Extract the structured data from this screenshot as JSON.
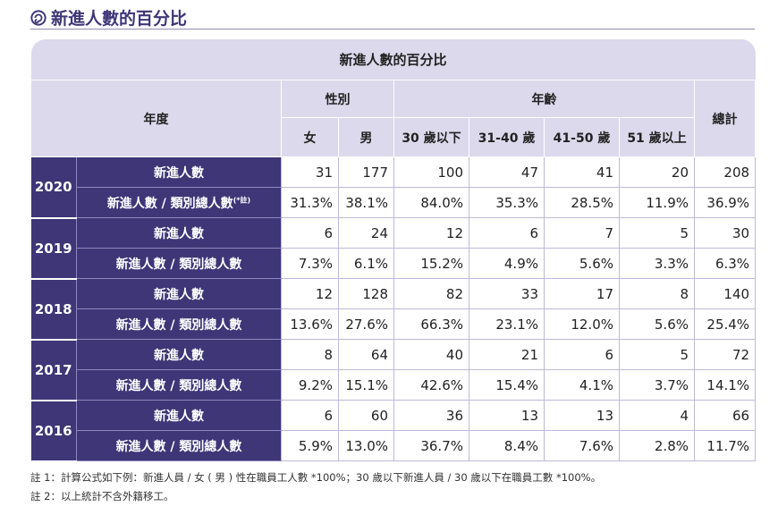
{
  "heading": {
    "title": "新進人數的百分比"
  },
  "table": {
    "caption": "新進人數的百分比",
    "col_year": "年度",
    "group_gender": "性別",
    "group_age": "年齡",
    "col_total": "總計",
    "sub_headers": [
      "女",
      "男",
      "30 歲以下",
      "31-40 歲",
      "41-50 歲",
      "51 歲以上"
    ],
    "metric_count": "新進人數",
    "metric_pct": "新進人數 / 類別總人數",
    "metric_pct_note": "(*註)",
    "years": [
      {
        "year": "2020",
        "count": [
          "31",
          "177",
          "100",
          "47",
          "41",
          "20",
          "208"
        ],
        "pct": [
          "31.3%",
          "38.1%",
          "84.0%",
          "35.3%",
          "28.5%",
          "11.9%",
          "36.9%"
        ]
      },
      {
        "year": "2019",
        "count": [
          "6",
          "24",
          "12",
          "6",
          "7",
          "5",
          "30"
        ],
        "pct": [
          "7.3%",
          "6.1%",
          "15.2%",
          "4.9%",
          "5.6%",
          "3.3%",
          "6.3%"
        ]
      },
      {
        "year": "2018",
        "count": [
          "12",
          "128",
          "82",
          "33",
          "17",
          "8",
          "140"
        ],
        "pct": [
          "13.6%",
          "27.6%",
          "66.3%",
          "23.1%",
          "12.0%",
          "5.6%",
          "25.4%"
        ]
      },
      {
        "year": "2017",
        "count": [
          "8",
          "64",
          "40",
          "21",
          "6",
          "5",
          "72"
        ],
        "pct": [
          "9.2%",
          "15.1%",
          "42.6%",
          "15.4%",
          "4.1%",
          "3.7%",
          "14.1%"
        ]
      },
      {
        "year": "2016",
        "count": [
          "6",
          "60",
          "36",
          "13",
          "13",
          "4",
          "66"
        ],
        "pct": [
          "5.9%",
          "13.0%",
          "36.7%",
          "8.4%",
          "7.6%",
          "2.8%",
          "11.7%"
        ]
      }
    ]
  },
  "notes": {
    "note1": "註 1：計算公式如下例：新進人員 / 女 ( 男 ) 性在職員工人數 *100%；30 歲以下新進人員 / 30 歲以下在職員工數 *100%。",
    "note2": "註 2：以上統計不含外籍移工。"
  },
  "colors": {
    "header_bg": "#dcd9ec",
    "row_header_bg": "#3e3677",
    "accent": "#3e3677"
  },
  "icons": {
    "heading_icon": "spiral-icon"
  }
}
